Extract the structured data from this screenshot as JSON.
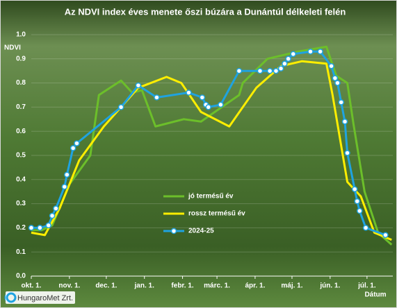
{
  "chart_data": {
    "type": "line",
    "title": "Az NDVI index éves menete őszi búzára a Dunántúl délkeleti felén",
    "y_label": "NDVI",
    "x_label": "Dátum",
    "logo": "HungaroMet Zrt.",
    "xlim": [
      0,
      294
    ],
    "ylim": [
      0,
      1
    ],
    "xticks": [
      {
        "value": 0,
        "label": "okt. 1."
      },
      {
        "value": 31,
        "label": "nov. 1."
      },
      {
        "value": 61,
        "label": "dec. 1."
      },
      {
        "value": 92,
        "label": "jan. 1."
      },
      {
        "value": 123,
        "label": "febr. 1."
      },
      {
        "value": 151,
        "label": "márc. 1."
      },
      {
        "value": 182,
        "label": "ápr. 1."
      },
      {
        "value": 212,
        "label": "máj. 1."
      },
      {
        "value": 243,
        "label": "jún. 1."
      },
      {
        "value": 273,
        "label": "júl. 1."
      }
    ],
    "yticks": [
      {
        "value": 0,
        "label": "0.0"
      },
      0.1,
      0.2,
      0.3,
      0.4,
      0.5,
      0.6,
      0.7,
      0.8,
      0.9,
      {
        "value": 1,
        "label": "1.0"
      }
    ],
    "grid": true,
    "series": [
      {
        "name": "jó termésű év",
        "color": "#6cbf2a",
        "markers": false,
        "x": [
          0,
          8.5,
          17,
          31,
          48,
          55,
          73,
          82,
          90,
          101,
          124,
          138,
          169,
          172,
          192,
          217,
          240,
          248,
          257,
          262,
          271,
          282,
          293
        ],
        "values": [
          0.19,
          0.19,
          0.21,
          0.38,
          0.5,
          0.75,
          0.81,
          0.76,
          0.77,
          0.62,
          0.65,
          0.64,
          0.75,
          0.8,
          0.9,
          0.93,
          0.95,
          0.83,
          0.8,
          0.63,
          0.35,
          0.18,
          0.13
        ]
      },
      {
        "name": "rossz termésű év",
        "color": "#ffee00",
        "markers": false,
        "x": [
          0,
          11,
          23,
          39,
          59,
          87,
          110,
          122,
          138,
          161,
          183,
          203,
          220,
          240,
          245,
          257,
          268,
          279,
          293
        ],
        "values": [
          0.18,
          0.17,
          0.28,
          0.48,
          0.62,
          0.78,
          0.825,
          0.8,
          0.68,
          0.62,
          0.78,
          0.87,
          0.89,
          0.88,
          0.75,
          0.39,
          0.33,
          0.18,
          0.15
        ]
      },
      {
        "name": "2024-25",
        "color": "#1fa3e0",
        "markers": true,
        "x": [
          0,
          7,
          14,
          17,
          20,
          27,
          29,
          34,
          37,
          73,
          87,
          102,
          128,
          139,
          142,
          144,
          154,
          169,
          186,
          194,
          199,
          203,
          206,
          209,
          213,
          227,
          235,
          244,
          247,
          249,
          252,
          255,
          257,
          263,
          265,
          267,
          272,
          288
        ],
        "values": [
          0.2,
          0.2,
          0.21,
          0.25,
          0.28,
          0.37,
          0.42,
          0.53,
          0.55,
          0.7,
          0.79,
          0.74,
          0.76,
          0.74,
          0.71,
          0.7,
          0.71,
          0.85,
          0.85,
          0.85,
          0.85,
          0.86,
          0.88,
          0.9,
          0.92,
          0.93,
          0.93,
          0.87,
          0.82,
          0.8,
          0.72,
          0.64,
          0.51,
          0.36,
          0.31,
          0.27,
          0.2,
          0.17
        ]
      }
    ],
    "legend": "center"
  }
}
